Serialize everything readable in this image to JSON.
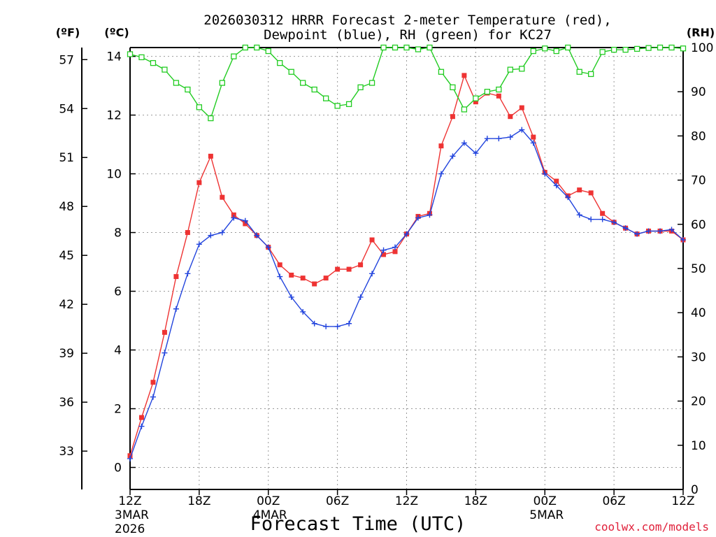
{
  "chart_data": {
    "type": "line",
    "title_line1": "2026030312 HRRR Forecast 2-meter Temperature (red),",
    "title_line2": "Dewpoint (blue), RH (green) for KC27",
    "xlabel": "Forecast Time (UTC)",
    "credit": "coolwx.com/models",
    "left_outer_unit": "(ºF)",
    "left_inner_unit": "(ºC)",
    "right_unit": "(RH)",
    "x_range_hours": [
      0,
      48
    ],
    "ylim_c": [
      -0.75,
      14.3
    ],
    "ylim_rh": [
      0,
      100
    ],
    "y_ticks_c": [
      0,
      2,
      4,
      6,
      8,
      10,
      12,
      14
    ],
    "y_ticks_f": [
      33,
      36,
      39,
      42,
      45,
      48,
      51,
      54,
      57
    ],
    "y_ticks_rh": [
      0,
      10,
      20,
      30,
      40,
      50,
      60,
      70,
      80,
      90,
      100
    ],
    "x_ticks": [
      {
        "hour": 0,
        "label": "12Z",
        "sub1": "3MAR",
        "sub2": "2026"
      },
      {
        "hour": 6,
        "label": "18Z",
        "sub1": "",
        "sub2": ""
      },
      {
        "hour": 12,
        "label": "00Z",
        "sub1": "4MAR",
        "sub2": ""
      },
      {
        "hour": 18,
        "label": "06Z",
        "sub1": "",
        "sub2": ""
      },
      {
        "hour": 24,
        "label": "12Z",
        "sub1": "",
        "sub2": ""
      },
      {
        "hour": 30,
        "label": "18Z",
        "sub1": "",
        "sub2": ""
      },
      {
        "hour": 36,
        "label": "00Z",
        "sub1": "5MAR",
        "sub2": ""
      },
      {
        "hour": 42,
        "label": "06Z",
        "sub1": "",
        "sub2": ""
      },
      {
        "hour": 48,
        "label": "12Z",
        "sub1": "",
        "sub2": ""
      }
    ],
    "series": [
      {
        "name": "2-meter Temperature",
        "unit": "C",
        "color": "#ee3333",
        "marker": "filled-square",
        "values": [
          0.4,
          1.7,
          2.9,
          4.6,
          6.5,
          8.0,
          9.7,
          10.6,
          9.2,
          8.6,
          8.3,
          7.9,
          7.5,
          6.9,
          6.55,
          6.45,
          6.25,
          6.45,
          6.75,
          6.75,
          6.9,
          7.75,
          7.25,
          7.35,
          7.95,
          8.55,
          8.65,
          10.95,
          11.95,
          13.35,
          12.45,
          12.75,
          12.65,
          11.95,
          12.25,
          11.25,
          10.05,
          9.75,
          9.25,
          9.45,
          9.35,
          8.65,
          8.35,
          8.15,
          7.95,
          8.05,
          8.05,
          8.05,
          7.75
        ]
      },
      {
        "name": "Dewpoint",
        "unit": "C",
        "color": "#2244dd",
        "marker": "plus",
        "values": [
          0.3,
          1.4,
          2.4,
          3.9,
          5.4,
          6.6,
          7.6,
          7.9,
          8.0,
          8.5,
          8.4,
          7.9,
          7.5,
          6.5,
          5.8,
          5.3,
          4.9,
          4.8,
          4.8,
          4.9,
          5.8,
          6.6,
          7.4,
          7.5,
          7.95,
          8.5,
          8.6,
          10.0,
          10.6,
          11.05,
          10.7,
          11.2,
          11.2,
          11.25,
          11.5,
          11.05,
          10.0,
          9.6,
          9.2,
          8.6,
          8.45,
          8.45,
          8.35,
          8.15,
          7.95,
          8.05,
          8.05,
          8.1,
          7.75
        ]
      },
      {
        "name": "RH",
        "unit": "%",
        "color": "#22cc22",
        "marker": "open-square",
        "values": [
          98.5,
          97.8,
          96.5,
          95.0,
          92.0,
          90.5,
          86.5,
          84.0,
          92.0,
          98.0,
          100,
          100,
          99.2,
          96.5,
          94.5,
          92.0,
          90.5,
          88.5,
          86.8,
          87.2,
          91.0,
          92.0,
          100,
          100,
          100,
          99.6,
          100,
          94.5,
          91.0,
          86.0,
          88.5,
          90.0,
          90.5,
          95.0,
          95.2,
          99.2,
          99.8,
          99.2,
          100,
          94.5,
          94.0,
          99.0,
          99.5,
          99.5,
          99.7,
          99.9,
          100,
          100,
          99.8
        ]
      }
    ]
  }
}
